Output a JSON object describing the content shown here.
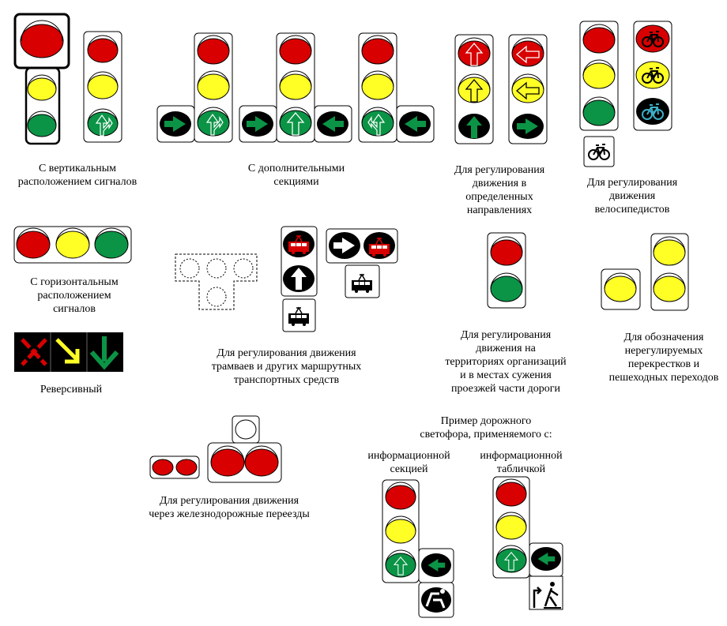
{
  "colors": {
    "red": "#d80000",
    "yellow": "#ffff26",
    "green": "#0b9446",
    "black": "#000000",
    "white": "#ffffff"
  },
  "captions": {
    "vertical": "С вертикальным\nрасположением сигналов",
    "additional": "С дополнительными\nсекциями",
    "directions": "Для регулирования\nдвижения в\nопределенных\nнаправлениях",
    "cyclists": "Для регулирования\nдвижения\nвелосипедистов",
    "horizontal": "С горизонтальным\nрасположением\nсигналов",
    "reversible": "Реверсивный",
    "trams": "Для регулирования движения\nтрамваев и других маршрутных\nтранспортных средств",
    "territories": "Для регулирования\nдвижения на\nтерриториях организаций\nи в местах сужения\nпроезжей части дороги",
    "unregulated": "Для обозначения\nнерегулируемых\nперекрестков и\nпешеходных переходов",
    "railway": "Для регулирования движения\nчерез железнодорожные переезды",
    "example": "Пример дорожного\nсветофора, применяемого с:",
    "with_section": "информационной\nсекцией",
    "with_plate": "информационной\nтабличкой"
  },
  "icons": [
    "arrow-icon",
    "bicycle-icon",
    "tram-icon",
    "trolleybus-icon",
    "pedestrian-icon",
    "x-cross-icon",
    "diagonal-arrow-icon",
    "down-arrow-icon"
  ]
}
